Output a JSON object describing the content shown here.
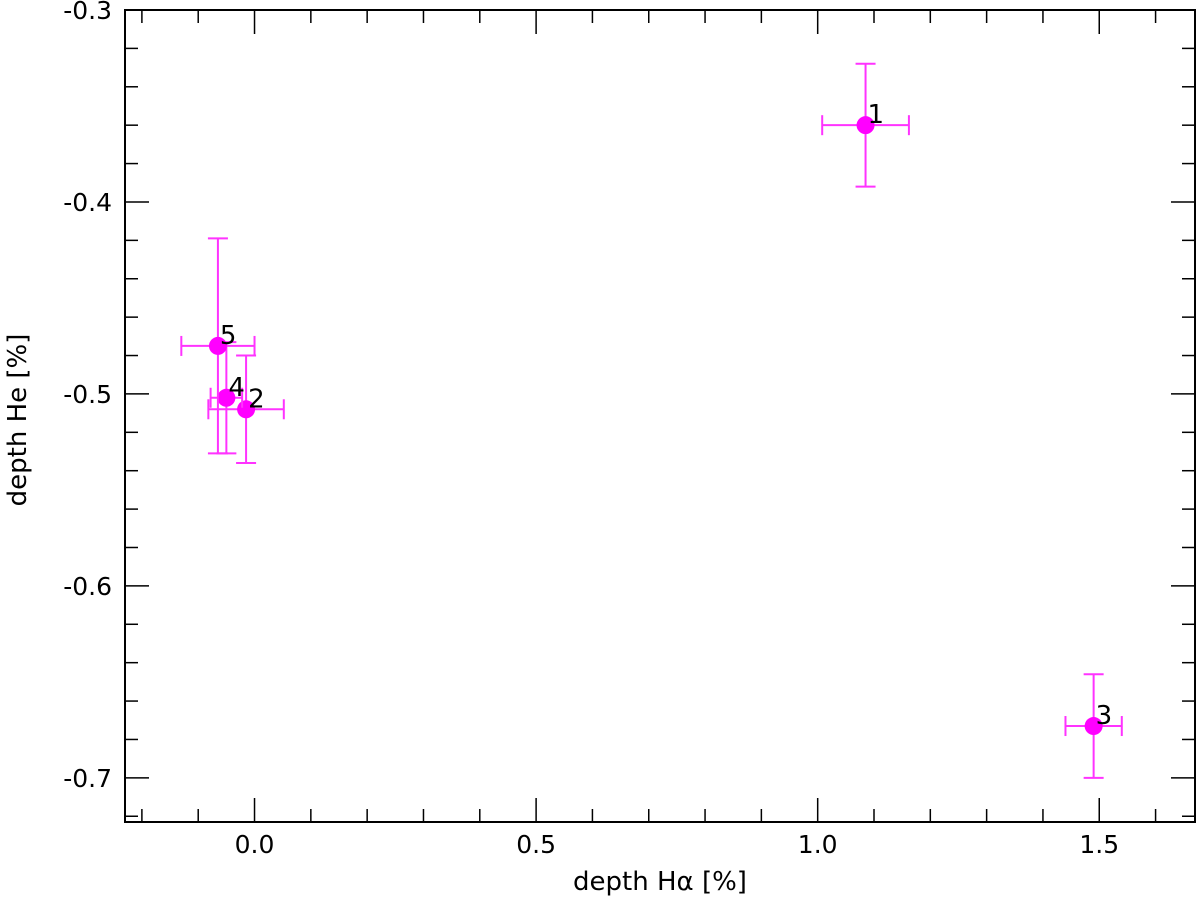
{
  "chart_data": {
    "type": "scatter",
    "title": "",
    "xlabel": "depth Hα [%]",
    "ylabel": "depth He [%]",
    "xlim": [
      -0.23,
      1.67
    ],
    "ylim": [
      -0.723,
      -0.3
    ],
    "x_ticks": [
      {
        "value": 0.0,
        "label": "0.0"
      },
      {
        "value": 0.5,
        "label": "0.5"
      },
      {
        "value": 1.0,
        "label": "1.0"
      },
      {
        "value": 1.5,
        "label": "1.5"
      }
    ],
    "y_ticks": [
      {
        "value": -0.3,
        "label": "-0.3"
      },
      {
        "value": -0.4,
        "label": "-0.4"
      },
      {
        "value": -0.5,
        "label": "-0.5"
      },
      {
        "value": -0.6,
        "label": "-0.6"
      },
      {
        "value": -0.7,
        "label": "-0.7"
      }
    ],
    "x_minor_step": 0.1,
    "y_minor_step": 0.02,
    "grid": false,
    "marker_color": "#ff00ff",
    "errorbar_color": "#ff33ff",
    "points": [
      {
        "label": "1",
        "x": 1.085,
        "y": -0.36,
        "xerr": 0.077,
        "yerr": 0.032
      },
      {
        "label": "2",
        "x": -0.015,
        "y": -0.508,
        "xerr": 0.067,
        "yerr": 0.028
      },
      {
        "label": "3",
        "x": 1.49,
        "y": -0.673,
        "xerr": 0.05,
        "yerr": 0.027
      },
      {
        "label": "4",
        "x": -0.05,
        "y": -0.502,
        "xerr": 0.028,
        "yerr": 0.029
      },
      {
        "label": "5",
        "x": -0.065,
        "y": -0.475,
        "xerr": 0.065,
        "yerr": 0.056
      }
    ]
  }
}
